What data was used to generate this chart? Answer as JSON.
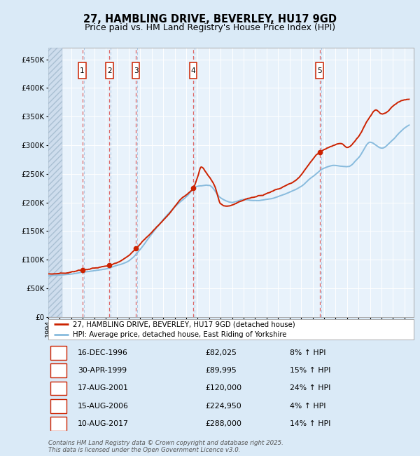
{
  "title": "27, HAMBLING DRIVE, BEVERLEY, HU17 9GD",
  "subtitle": "Price paid vs. HM Land Registry's House Price Index (HPI)",
  "ylim": [
    0,
    470000
  ],
  "yticks": [
    0,
    50000,
    100000,
    150000,
    200000,
    250000,
    300000,
    350000,
    400000,
    450000
  ],
  "ytick_labels": [
    "£0",
    "£50K",
    "£100K",
    "£150K",
    "£200K",
    "£250K",
    "£300K",
    "£350K",
    "£400K",
    "£450K"
  ],
  "xlim_start": 1994.0,
  "xlim_end": 2025.8,
  "legend_line1": "27, HAMBLING DRIVE, BEVERLEY, HU17 9GD (detached house)",
  "legend_line2": "HPI: Average price, detached house, East Riding of Yorkshire",
  "sales": [
    {
      "num": 1,
      "date": "16-DEC-1996",
      "year": 1996.96,
      "price": 82025,
      "pct": "8%",
      "dir": "↑"
    },
    {
      "num": 2,
      "date": "30-APR-1999",
      "year": 1999.33,
      "price": 89995,
      "pct": "15%",
      "dir": "↑"
    },
    {
      "num": 3,
      "date": "17-AUG-2001",
      "year": 2001.62,
      "price": 120000,
      "pct": "24%",
      "dir": "↑"
    },
    {
      "num": 4,
      "date": "15-AUG-2006",
      "year": 2006.62,
      "price": 224950,
      "pct": "4%",
      "dir": "↑"
    },
    {
      "num": 5,
      "date": "10-AUG-2017",
      "year": 2017.62,
      "price": 288000,
      "pct": "14%",
      "dir": "↑"
    }
  ],
  "footer": "Contains HM Land Registry data © Crown copyright and database right 2025.\nThis data is licensed under the Open Government Licence v3.0.",
  "bg_color": "#daeaf7",
  "plot_bg": "#e8f2fb",
  "grid_color": "#ffffff",
  "red_line_color": "#cc2200",
  "blue_line_color": "#88bbdd",
  "dashed_red": "#dd6666",
  "dashed_blue": "#99bbdd",
  "title_fontsize": 10.5,
  "subtitle_fontsize": 9,
  "tick_fontsize": 7.5
}
